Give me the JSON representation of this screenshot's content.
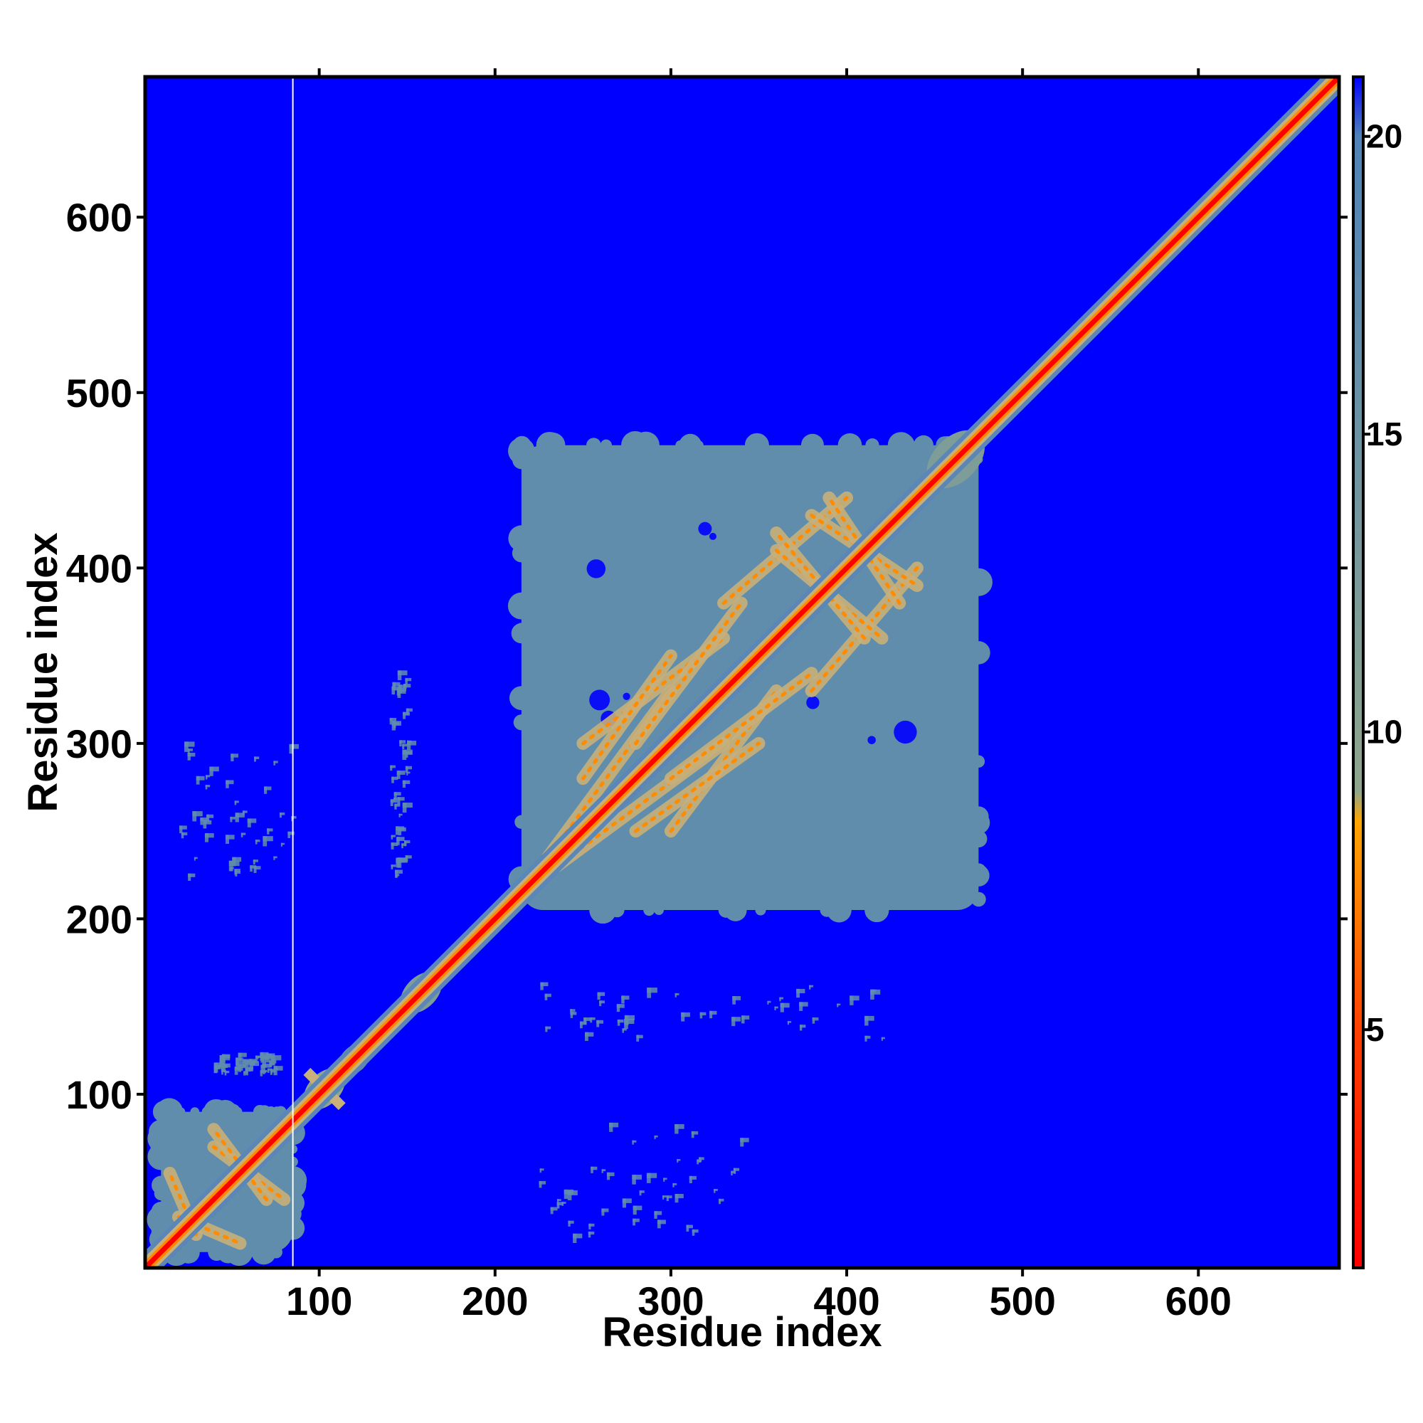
{
  "chart_data": {
    "type": "heatmap",
    "xlabel": "Residue index",
    "ylabel": "Residue index",
    "xlim": [
      1,
      680
    ],
    "ylim": [
      1,
      680
    ],
    "x_ticks": [
      100,
      200,
      300,
      400,
      500,
      600
    ],
    "y_ticks": [
      100,
      200,
      300,
      400,
      500,
      600
    ],
    "colorbar": {
      "range": [
        1,
        21
      ],
      "ticks": [
        5,
        10,
        15,
        20
      ],
      "stops": [
        {
          "value": 1,
          "color": "#ff0000"
        },
        {
          "value": 5,
          "color": "#ff4000"
        },
        {
          "value": 8.5,
          "color": "#ffa500"
        },
        {
          "value": 9,
          "color": "#8fa68c"
        },
        {
          "value": 20,
          "color": "#4f83b8"
        },
        {
          "value": 21,
          "color": "#0000ff"
        }
      ]
    },
    "background_value": 21,
    "colors": {
      "background": "#0000ff",
      "contact_region": "#5b86b8",
      "medium": "#c8b07a",
      "close": "#ff8c00",
      "diagonal": "#ff0000"
    },
    "gap_line_residue": 85,
    "domains": [
      {
        "x": [
          10,
          85
        ],
        "y": [
          10,
          90
        ],
        "value": 17
      },
      {
        "x": [
          215,
          475
        ],
        "y": [
          205,
          470
        ],
        "value": 17
      }
    ],
    "diagonal_blobs": [
      {
        "center": 103,
        "halfwidth": 10,
        "value": 9
      },
      {
        "center": 120,
        "halfwidth": 8,
        "value": 12
      },
      {
        "center": 140,
        "halfwidth": 6,
        "value": 12
      },
      {
        "center": 158,
        "halfwidth": 10,
        "value": 12
      },
      {
        "center": 462,
        "halfwidth": 14,
        "value": 12
      }
    ],
    "contact_bands": [
      {
        "from": [
          230,
          235
        ],
        "to": [
          300,
          330
        ],
        "value": 8
      },
      {
        "from": [
          250,
          300
        ],
        "to": [
          330,
          360
        ],
        "value": 8
      },
      {
        "from": [
          280,
          250
        ],
        "to": [
          350,
          300
        ],
        "value": 8
      },
      {
        "from": [
          330,
          380
        ],
        "to": [
          400,
          440
        ],
        "value": 8
      },
      {
        "from": [
          360,
          410
        ],
        "to": [
          420,
          360
        ],
        "value": 8
      },
      {
        "from": [
          300,
          280
        ],
        "to": [
          380,
          340
        ],
        "value": 8
      },
      {
        "from": [
          380,
          430
        ],
        "to": [
          440,
          390
        ],
        "value": 8
      },
      {
        "from": [
          40,
          70
        ],
        "to": [
          80,
          40
        ],
        "value": 8
      },
      {
        "from": [
          20,
          30
        ],
        "to": [
          55,
          15
        ],
        "value": 8
      }
    ],
    "scattered_contacts": [
      {
        "x": [
          20,
          85
        ],
        "y": [
          220,
          300
        ],
        "value": 17
      },
      {
        "x": [
          140,
          150
        ],
        "y": [
          220,
          340
        ],
        "value": 17
      },
      {
        "x": [
          225,
          340
        ],
        "y": [
          15,
          80
        ],
        "value": 17
      },
      {
        "x": [
          225,
          420
        ],
        "y": [
          130,
          160
        ],
        "value": 17
      },
      {
        "x": [
          40,
          75
        ],
        "y": [
          110,
          120
        ],
        "value": 17
      }
    ]
  }
}
